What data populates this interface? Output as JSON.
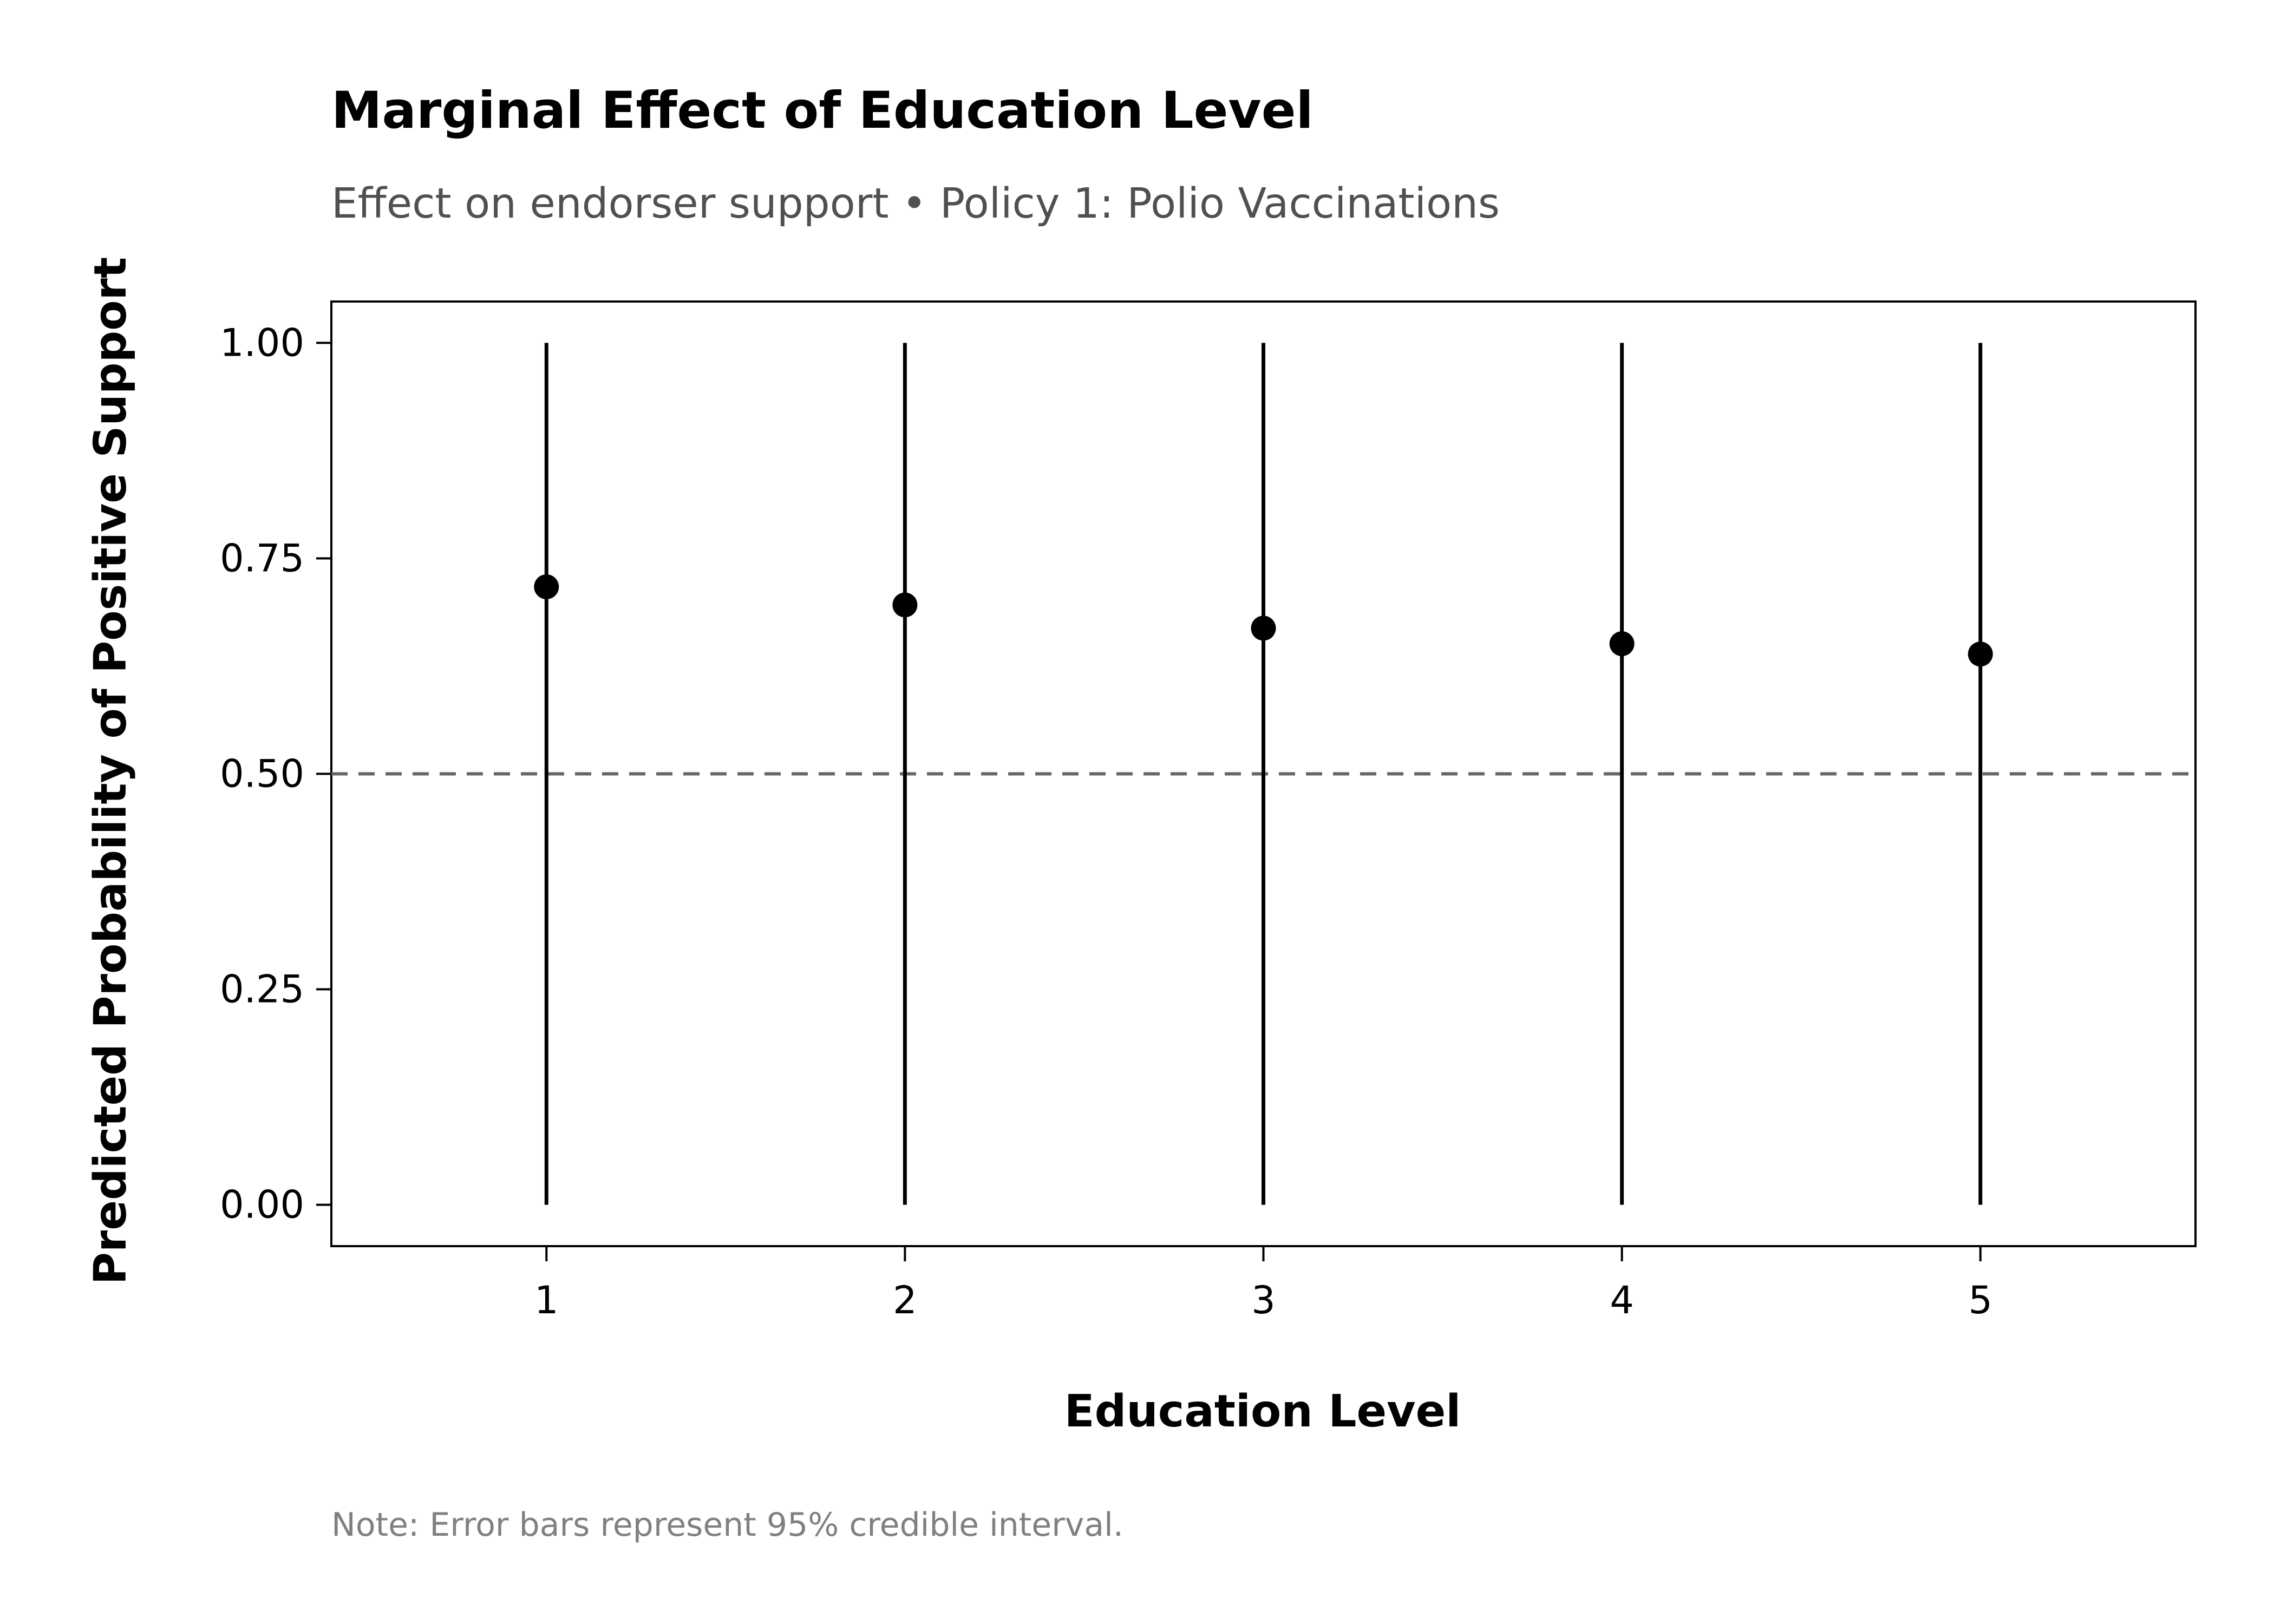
{
  "chart_data": {
    "type": "scatter",
    "title": "Marginal Effect of Education Level",
    "subtitle": "Effect on endorser support • Policy 1: Polio Vaccinations",
    "xlabel": "Education Level",
    "ylabel": "Predicted Probability of Positive Support",
    "note": "Note: Error bars represent 95% credible interval.",
    "x": [
      1,
      2,
      3,
      4,
      5
    ],
    "y": [
      0.717,
      0.696,
      0.669,
      0.651,
      0.639
    ],
    "ci_lower": [
      0.0,
      0.0,
      0.0,
      0.0,
      0.0
    ],
    "ci_upper": [
      1.0,
      1.0,
      1.0,
      1.0,
      1.0
    ],
    "xlim": [
      0.4,
      5.6
    ],
    "ylim": [
      -0.048,
      1.048
    ],
    "xticks": [
      1,
      2,
      3,
      4,
      5
    ],
    "xtick_labels": [
      "1",
      "2",
      "3",
      "4",
      "5"
    ],
    "yticks": [
      0.0,
      0.25,
      0.5,
      0.75,
      1.0
    ],
    "ytick_labels": [
      "0.00",
      "0.25",
      "0.50",
      "0.75",
      "1.00"
    ],
    "reference_line": {
      "y": 0.5,
      "style": "dashed",
      "color": "#666666"
    },
    "grid": false,
    "legend": "none",
    "point_color": "#000000",
    "errorbar_color": "#000000"
  }
}
